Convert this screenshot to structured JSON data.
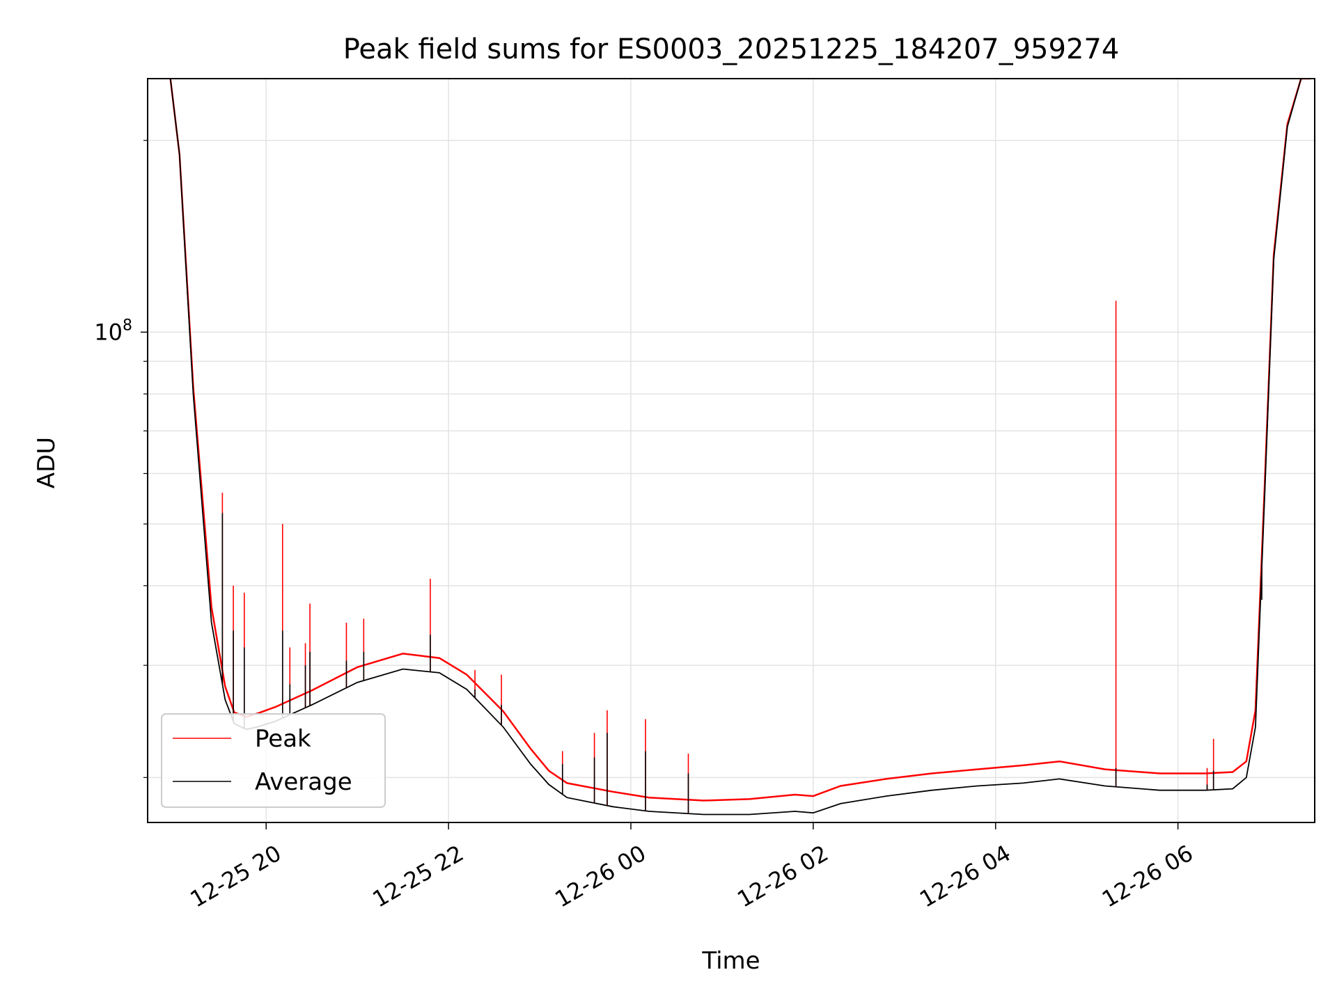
{
  "chart_data": {
    "type": "line",
    "title": "Peak field sums for ES0003_20251225_184207_959274",
    "xlabel": "Time",
    "ylabel": "ADU",
    "yscale": "log",
    "ylim": [
      17000000,
      250000000
    ],
    "xlim_hours_from_20251225_1800": [
      0.7,
      13.5
    ],
    "grid": true,
    "legend_location": "lower-left",
    "x_ticks": [
      {
        "label": "12-25 20",
        "value": 2
      },
      {
        "label": "12-25 22",
        "value": 4
      },
      {
        "label": "12-26 00",
        "value": 6
      },
      {
        "label": "12-26 02",
        "value": 8
      },
      {
        "label": "12-26 04",
        "value": 10
      },
      {
        "label": "12-26 06",
        "value": 12
      }
    ],
    "y_major_ticks": [
      {
        "label": "10",
        "exponent": "8",
        "value": 100000000
      }
    ],
    "y_minor_ticks": [
      20000000,
      30000000,
      40000000,
      50000000,
      60000000,
      70000000,
      80000000,
      90000000,
      200000000
    ],
    "series": [
      {
        "name": "Average",
        "color": "#000000",
        "x": [
          0.95,
          1.05,
          1.2,
          1.4,
          1.55,
          1.65,
          1.78,
          1.9,
          2.1,
          2.5,
          3.0,
          3.5,
          3.9,
          4.2,
          4.6,
          4.9,
          5.1,
          5.3,
          5.8,
          6.2,
          6.8,
          7.3,
          7.8,
          8.0,
          8.3,
          8.8,
          9.3,
          9.8,
          10.3,
          10.7,
          11.2,
          11.8,
          12.3,
          12.6,
          12.75,
          12.85,
          12.95,
          13.05,
          13.2,
          13.35,
          13.45
        ],
        "values": [
          250000000,
          190000000,
          80000000,
          35000000,
          26500000,
          24300000,
          23800000,
          24000000,
          24500000,
          26000000,
          28200000,
          29600000,
          29200000,
          27500000,
          24000000,
          21000000,
          19500000,
          18600000,
          18000000,
          17700000,
          17500000,
          17500000,
          17700000,
          17600000,
          18200000,
          18700000,
          19100000,
          19400000,
          19600000,
          19900000,
          19400000,
          19100000,
          19100000,
          19200000,
          20000000,
          24000000,
          55000000,
          130000000,
          210000000,
          250000000,
          250000000
        ]
      },
      {
        "name": "Peak",
        "color": "#ff0000",
        "x": [
          0.95,
          1.05,
          1.2,
          1.4,
          1.55,
          1.65,
          1.78,
          1.9,
          2.1,
          2.5,
          3.0,
          3.5,
          3.9,
          4.2,
          4.6,
          4.9,
          5.1,
          5.3,
          5.8,
          6.2,
          6.8,
          7.3,
          7.8,
          8.0,
          8.3,
          8.8,
          9.3,
          9.8,
          10.3,
          10.7,
          11.2,
          11.8,
          12.3,
          12.6,
          12.75,
          12.85,
          12.95,
          13.05,
          13.2,
          13.35,
          13.45
        ],
        "values": [
          250000000,
          190000000,
          82000000,
          37000000,
          27800000,
          25300000,
          24900000,
          25200000,
          25800000,
          27400000,
          29800000,
          31300000,
          30800000,
          29000000,
          25400000,
          22200000,
          20500000,
          19600000,
          19000000,
          18600000,
          18400000,
          18500000,
          18800000,
          18700000,
          19400000,
          19900000,
          20300000,
          20600000,
          20900000,
          21200000,
          20600000,
          20300000,
          20300000,
          20400000,
          21200000,
          25500000,
          57000000,
          132000000,
          212000000,
          250000000,
          250000000
        ]
      }
    ],
    "peak_spikes": [
      {
        "x": 1.52,
        "peak": 56000000,
        "average": 52000000
      },
      {
        "x": 1.64,
        "peak": 40000000,
        "average": 34000000
      },
      {
        "x": 1.76,
        "peak": 39000000,
        "average": 32000000
      },
      {
        "x": 2.18,
        "peak": 50000000,
        "average": 34000000
      },
      {
        "x": 2.26,
        "peak": 32000000,
        "average": 28000000
      },
      {
        "x": 2.43,
        "peak": 32500000,
        "average": 30000000
      },
      {
        "x": 2.48,
        "peak": 37500000,
        "average": 31500000
      },
      {
        "x": 2.88,
        "peak": 35000000,
        "average": 30500000
      },
      {
        "x": 3.07,
        "peak": 35500000,
        "average": 31500000
      },
      {
        "x": 3.8,
        "peak": 41000000,
        "average": 33500000
      },
      {
        "x": 4.29,
        "peak": 29500000,
        "average": 27500000
      },
      {
        "x": 4.58,
        "peak": 29000000,
        "average": 26000000
      },
      {
        "x": 5.25,
        "peak": 22000000,
        "average": 21000000
      },
      {
        "x": 5.6,
        "peak": 23500000,
        "average": 21500000
      },
      {
        "x": 5.74,
        "peak": 25500000,
        "average": 23500000
      },
      {
        "x": 6.16,
        "peak": 24700000,
        "average": 22000000
      },
      {
        "x": 6.63,
        "peak": 21800000,
        "average": 20300000
      },
      {
        "x": 11.32,
        "peak": 112000000,
        "average": 20700000
      },
      {
        "x": 12.32,
        "peak": 20700000,
        "average": 19500000
      },
      {
        "x": 12.39,
        "peak": 23000000,
        "average": 20500000
      },
      {
        "x": 12.92,
        "peak": 41500000,
        "average": 38000000
      }
    ]
  },
  "legend": {
    "items": [
      {
        "label": "Peak",
        "color": "#ff0000"
      },
      {
        "label": "Average",
        "color": "#000000"
      }
    ]
  }
}
